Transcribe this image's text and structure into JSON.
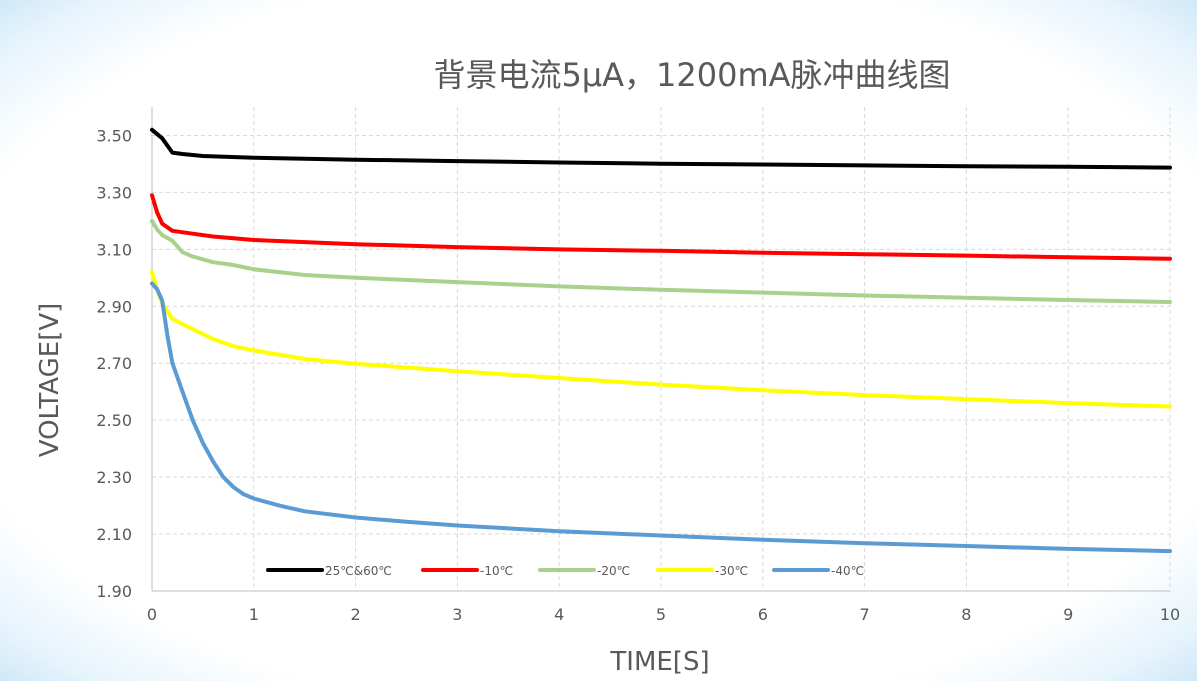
{
  "chart_data": {
    "type": "line",
    "title": "背景电流5μA，1200mA脉冲曲线图",
    "xlabel": "TIME[S]",
    "ylabel": "VOLTAGE[V]",
    "xlim": [
      0,
      10
    ],
    "ylim": [
      1.9,
      3.6
    ],
    "x_ticks": [
      "0",
      "1",
      "2",
      "3",
      "4",
      "5",
      "6",
      "7",
      "8",
      "9",
      "10"
    ],
    "y_ticks": [
      "1.90",
      "2.10",
      "2.30",
      "2.50",
      "2.70",
      "2.90",
      "3.10",
      "3.30",
      "3.50"
    ],
    "grid": "dashed vertical and horizontal",
    "legend_position": "bottom-left inside plot",
    "series": [
      {
        "name": "25℃&60℃",
        "color": "#000000",
        "points": [
          [
            0,
            3.52
          ],
          [
            0.1,
            3.49
          ],
          [
            0.2,
            3.44
          ],
          [
            0.3,
            3.435
          ],
          [
            0.5,
            3.428
          ],
          [
            1,
            3.422
          ],
          [
            2,
            3.415
          ],
          [
            3,
            3.41
          ],
          [
            4,
            3.405
          ],
          [
            5,
            3.401
          ],
          [
            6,
            3.398
          ],
          [
            7,
            3.395
          ],
          [
            8,
            3.392
          ],
          [
            9,
            3.39
          ],
          [
            10,
            3.387
          ]
        ]
      },
      {
        "name": "-10℃",
        "color": "#ff0000",
        "points": [
          [
            0,
            3.29
          ],
          [
            0.05,
            3.23
          ],
          [
            0.1,
            3.19
          ],
          [
            0.2,
            3.165
          ],
          [
            0.4,
            3.155
          ],
          [
            0.6,
            3.145
          ],
          [
            1,
            3.133
          ],
          [
            2,
            3.118
          ],
          [
            3,
            3.108
          ],
          [
            4,
            3.1
          ],
          [
            5,
            3.095
          ],
          [
            6,
            3.088
          ],
          [
            7,
            3.083
          ],
          [
            8,
            3.078
          ],
          [
            9,
            3.072
          ],
          [
            10,
            3.067
          ]
        ]
      },
      {
        "name": "-20℃",
        "color": "#a9d18e",
        "points": [
          [
            0,
            3.2
          ],
          [
            0.05,
            3.17
          ],
          [
            0.1,
            3.15
          ],
          [
            0.2,
            3.13
          ],
          [
            0.3,
            3.09
          ],
          [
            0.4,
            3.075
          ],
          [
            0.6,
            3.055
          ],
          [
            0.8,
            3.045
          ],
          [
            1,
            3.03
          ],
          [
            1.5,
            3.01
          ],
          [
            2,
            3.0
          ],
          [
            3,
            2.985
          ],
          [
            4,
            2.97
          ],
          [
            5,
            2.958
          ],
          [
            6,
            2.948
          ],
          [
            7,
            2.938
          ],
          [
            8,
            2.93
          ],
          [
            9,
            2.922
          ],
          [
            10,
            2.915
          ]
        ]
      },
      {
        "name": "-30℃",
        "color": "#ffff00",
        "points": [
          [
            0,
            3.02
          ],
          [
            0.05,
            2.96
          ],
          [
            0.1,
            2.91
          ],
          [
            0.2,
            2.855
          ],
          [
            0.4,
            2.82
          ],
          [
            0.6,
            2.785
          ],
          [
            0.8,
            2.76
          ],
          [
            1,
            2.745
          ],
          [
            1.5,
            2.715
          ],
          [
            2,
            2.698
          ],
          [
            3,
            2.672
          ],
          [
            4,
            2.648
          ],
          [
            5,
            2.625
          ],
          [
            6,
            2.605
          ],
          [
            7,
            2.588
          ],
          [
            8,
            2.574
          ],
          [
            9,
            2.56
          ],
          [
            10,
            2.548
          ]
        ]
      },
      {
        "name": "-40℃",
        "color": "#5b9bd5",
        "points": [
          [
            0,
            2.98
          ],
          [
            0.05,
            2.96
          ],
          [
            0.1,
            2.92
          ],
          [
            0.15,
            2.8
          ],
          [
            0.2,
            2.7
          ],
          [
            0.3,
            2.6
          ],
          [
            0.4,
            2.5
          ],
          [
            0.5,
            2.42
          ],
          [
            0.6,
            2.355
          ],
          [
            0.7,
            2.3
          ],
          [
            0.8,
            2.265
          ],
          [
            0.9,
            2.24
          ],
          [
            1,
            2.225
          ],
          [
            1.25,
            2.2
          ],
          [
            1.5,
            2.18
          ],
          [
            2,
            2.158
          ],
          [
            2.5,
            2.143
          ],
          [
            3,
            2.13
          ],
          [
            4,
            2.11
          ],
          [
            5,
            2.095
          ],
          [
            6,
            2.08
          ],
          [
            7,
            2.068
          ],
          [
            8,
            2.058
          ],
          [
            9,
            2.048
          ],
          [
            10,
            2.04
          ]
        ]
      }
    ]
  }
}
